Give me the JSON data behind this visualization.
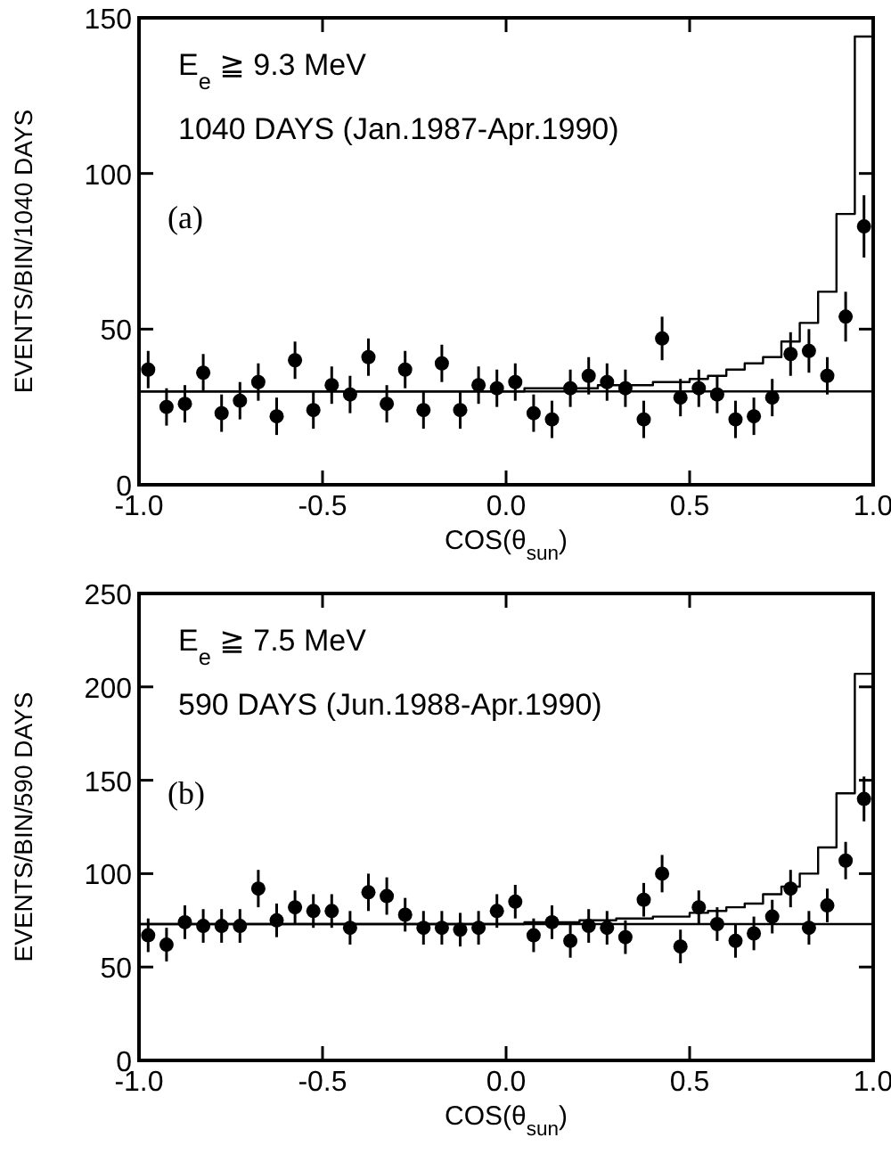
{
  "chart_data": [
    {
      "type": "scatter",
      "xlabel": "COS(θ$_{sun}$)",
      "ylabel": "EVENTS/BIN/1040 DAYS",
      "annotations": [
        "E$_{e}$ ≧ 9.3 MeV",
        "1040 DAYS (Jan.1987-Apr.1990)",
        "(a)"
      ],
      "x": [
        -0.975,
        -0.925,
        -0.875,
        -0.825,
        -0.775,
        -0.725,
        -0.675,
        -0.625,
        -0.575,
        -0.525,
        -0.475,
        -0.425,
        -0.375,
        -0.325,
        -0.275,
        -0.225,
        -0.175,
        -0.125,
        -0.075,
        -0.025,
        0.025,
        0.075,
        0.125,
        0.175,
        0.225,
        0.275,
        0.325,
        0.375,
        0.425,
        0.475,
        0.525,
        0.575,
        0.625,
        0.675,
        0.725,
        0.775,
        0.825,
        0.875,
        0.925,
        0.975
      ],
      "xlim": [
        -1,
        1
      ],
      "xticks": [
        {
          "value": -1,
          "label": "-1.0"
        },
        {
          "value": -0.5,
          "label": "-0.5"
        },
        {
          "value": 0,
          "label": "0.0"
        },
        {
          "value": 0.5,
          "label": "0.5"
        },
        {
          "value": 1,
          "label": "1.0"
        }
      ],
      "ylim": [
        0,
        150
      ],
      "yticks": [
        0,
        50,
        100,
        150
      ],
      "ref_lines": [
        {
          "axis": "y",
          "value": 30,
          "color": "#000000"
        }
      ],
      "series": [
        {
          "marker": "circle",
          "color": "#000000",
          "values": [
            37,
            25,
            26,
            36,
            23,
            27,
            33,
            22,
            40,
            24,
            32,
            29,
            41,
            26,
            37,
            24,
            39,
            24,
            32,
            31,
            33,
            23,
            21,
            31,
            35,
            33,
            31,
            21,
            47,
            28,
            31,
            29,
            21,
            22,
            28,
            42,
            43,
            35,
            54,
            83
          ],
          "errors": [
            6,
            6,
            6,
            6,
            6,
            6,
            6,
            6,
            6,
            6,
            6,
            6,
            6,
            6,
            6,
            6,
            6,
            6,
            6,
            6,
            6,
            6,
            6,
            6,
            6,
            6,
            6,
            6,
            7,
            6,
            6,
            6,
            6,
            6,
            6,
            7,
            7,
            6,
            8,
            10
          ]
        },
        {
          "type": "step",
          "color": "#000000",
          "x": [
            -1,
            -0.95,
            -0.9,
            -0.85,
            -0.8,
            -0.75,
            -0.7,
            -0.65,
            -0.6,
            -0.55,
            -0.5,
            -0.45,
            -0.4,
            -0.35,
            -0.3,
            -0.25,
            -0.2,
            -0.15,
            -0.1,
            -0.05,
            0,
            0.05,
            0.1,
            0.15,
            0.2,
            0.25,
            0.3,
            0.35,
            0.4,
            0.45,
            0.5,
            0.55,
            0.6,
            0.65,
            0.7,
            0.75,
            0.8,
            0.85,
            0.9,
            0.95,
            1
          ],
          "values": [
            30,
            30,
            30,
            30,
            30,
            30,
            30,
            30,
            30,
            30,
            30,
            30,
            30,
            30,
            30,
            30,
            30,
            30,
            30,
            30,
            30,
            31,
            31,
            31,
            31,
            32,
            32,
            32,
            33,
            33,
            34,
            35,
            37,
            39,
            41,
            46,
            52,
            62,
            87,
            144,
            144
          ]
        }
      ]
    },
    {
      "type": "scatter",
      "xlabel": "COS(θ$_{sun}$)",
      "ylabel": "EVENTS/BIN/590 DAYS",
      "annotations": [
        "E$_{e}$ ≧ 7.5 MeV",
        "590 DAYS  (Jun.1988-Apr.1990)",
        "(b)"
      ],
      "x": [
        -0.975,
        -0.925,
        -0.875,
        -0.825,
        -0.775,
        -0.725,
        -0.675,
        -0.625,
        -0.575,
        -0.525,
        -0.475,
        -0.425,
        -0.375,
        -0.325,
        -0.275,
        -0.225,
        -0.175,
        -0.125,
        -0.075,
        -0.025,
        0.025,
        0.075,
        0.125,
        0.175,
        0.225,
        0.275,
        0.325,
        0.375,
        0.425,
        0.475,
        0.525,
        0.575,
        0.625,
        0.675,
        0.725,
        0.775,
        0.825,
        0.875,
        0.925,
        0.975
      ],
      "xlim": [
        -1,
        1
      ],
      "xticks": [
        {
          "value": -1,
          "label": "-1.0"
        },
        {
          "value": -0.5,
          "label": "-0.5"
        },
        {
          "value": 0,
          "label": "0.0"
        },
        {
          "value": 0.5,
          "label": "0.5"
        },
        {
          "value": 1,
          "label": "1.0"
        }
      ],
      "ylim": [
        0,
        250
      ],
      "yticks": [
        0,
        50,
        100,
        150,
        200,
        250
      ],
      "ref_lines": [
        {
          "axis": "y",
          "value": 73,
          "color": "#000000"
        }
      ],
      "series": [
        {
          "marker": "circle",
          "color": "#000000",
          "values": [
            67,
            62,
            74,
            72,
            72,
            72,
            92,
            75,
            82,
            80,
            80,
            71,
            90,
            88,
            78,
            71,
            71,
            70,
            71,
            80,
            85,
            67,
            74,
            64,
            72,
            71,
            66,
            86,
            100,
            61,
            82,
            73,
            64,
            68,
            77,
            92,
            71,
            83,
            107,
            140
          ],
          "errors": [
            9,
            9,
            9,
            9,
            9,
            9,
            10,
            9,
            9,
            9,
            9,
            9,
            10,
            10,
            9,
            9,
            9,
            9,
            9,
            9,
            9,
            9,
            9,
            9,
            9,
            9,
            9,
            9,
            10,
            9,
            9,
            9,
            9,
            9,
            9,
            10,
            9,
            9,
            10,
            12
          ]
        },
        {
          "type": "step",
          "color": "#000000",
          "x": [
            -1,
            -0.95,
            -0.9,
            -0.85,
            -0.8,
            -0.75,
            -0.7,
            -0.65,
            -0.6,
            -0.55,
            -0.5,
            -0.45,
            -0.4,
            -0.35,
            -0.3,
            -0.25,
            -0.2,
            -0.15,
            -0.1,
            -0.05,
            0,
            0.05,
            0.1,
            0.15,
            0.2,
            0.25,
            0.3,
            0.35,
            0.4,
            0.45,
            0.5,
            0.55,
            0.6,
            0.65,
            0.7,
            0.75,
            0.8,
            0.85,
            0.9,
            0.95,
            1
          ],
          "values": [
            73,
            73,
            73,
            73,
            73,
            73,
            73,
            73,
            73,
            73,
            73,
            73,
            73,
            73,
            73,
            73,
            73,
            73,
            73,
            73,
            73,
            74,
            74,
            74,
            75,
            75,
            76,
            76,
            77,
            77,
            79,
            80,
            82,
            84,
            89,
            93,
            100,
            114,
            143,
            207,
            207
          ]
        }
      ]
    }
  ]
}
